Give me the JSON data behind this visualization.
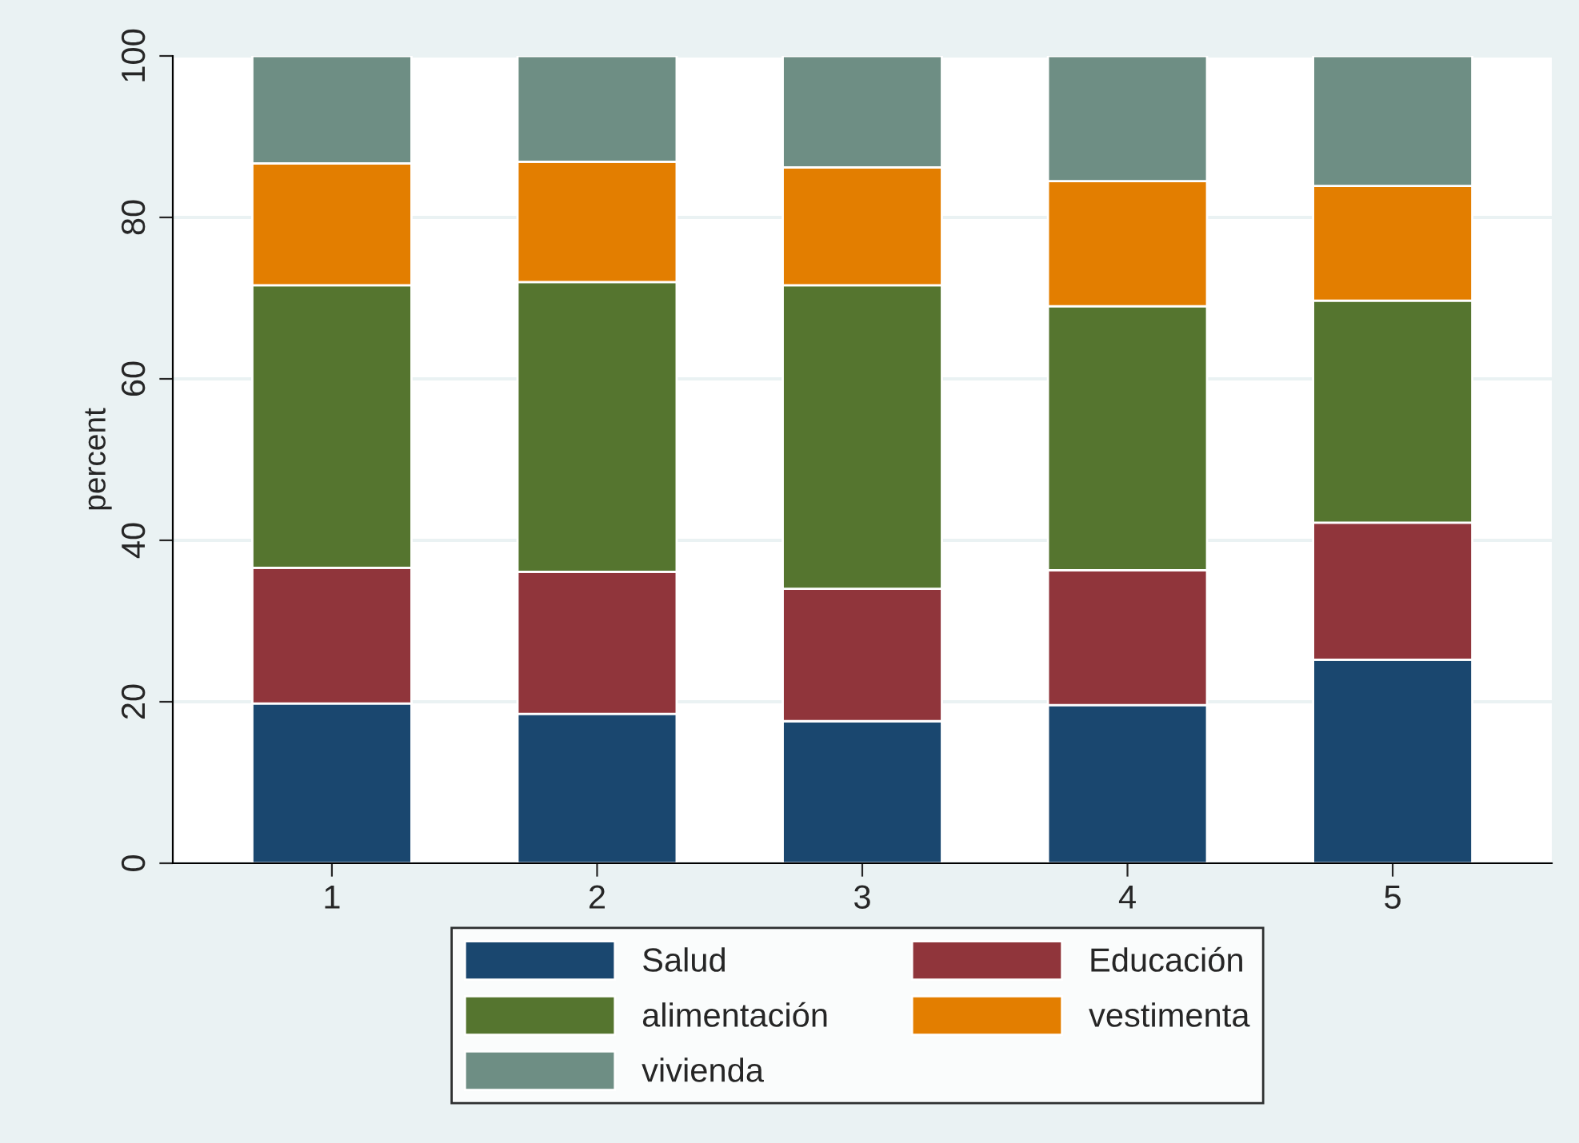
{
  "chart_data": {
    "type": "bar",
    "stacked": true,
    "ylabel": "percent",
    "categories": [
      "1",
      "2",
      "3",
      "4",
      "5"
    ],
    "series": [
      {
        "name": "Salud",
        "color": "#1a476f",
        "values": [
          19.8,
          18.5,
          17.6,
          19.6,
          25.2
        ]
      },
      {
        "name": "Educación",
        "color": "#90353b",
        "values": [
          16.8,
          17.6,
          16.4,
          16.7,
          17.0
        ]
      },
      {
        "name": "alimentación",
        "color": "#55752f",
        "values": [
          35.0,
          35.9,
          37.6,
          32.7,
          27.5
        ]
      },
      {
        "name": "vestimenta",
        "color": "#e37e00",
        "values": [
          15.1,
          14.9,
          14.6,
          15.5,
          14.2
        ]
      },
      {
        "name": "vivienda",
        "color": "#6e8e84",
        "values": [
          13.3,
          13.1,
          13.8,
          15.5,
          16.1
        ]
      }
    ],
    "ylim": [
      0,
      100
    ],
    "yticks": [
      0,
      20,
      40,
      60,
      80,
      100
    ],
    "grid": "y",
    "legend": "bottom"
  }
}
